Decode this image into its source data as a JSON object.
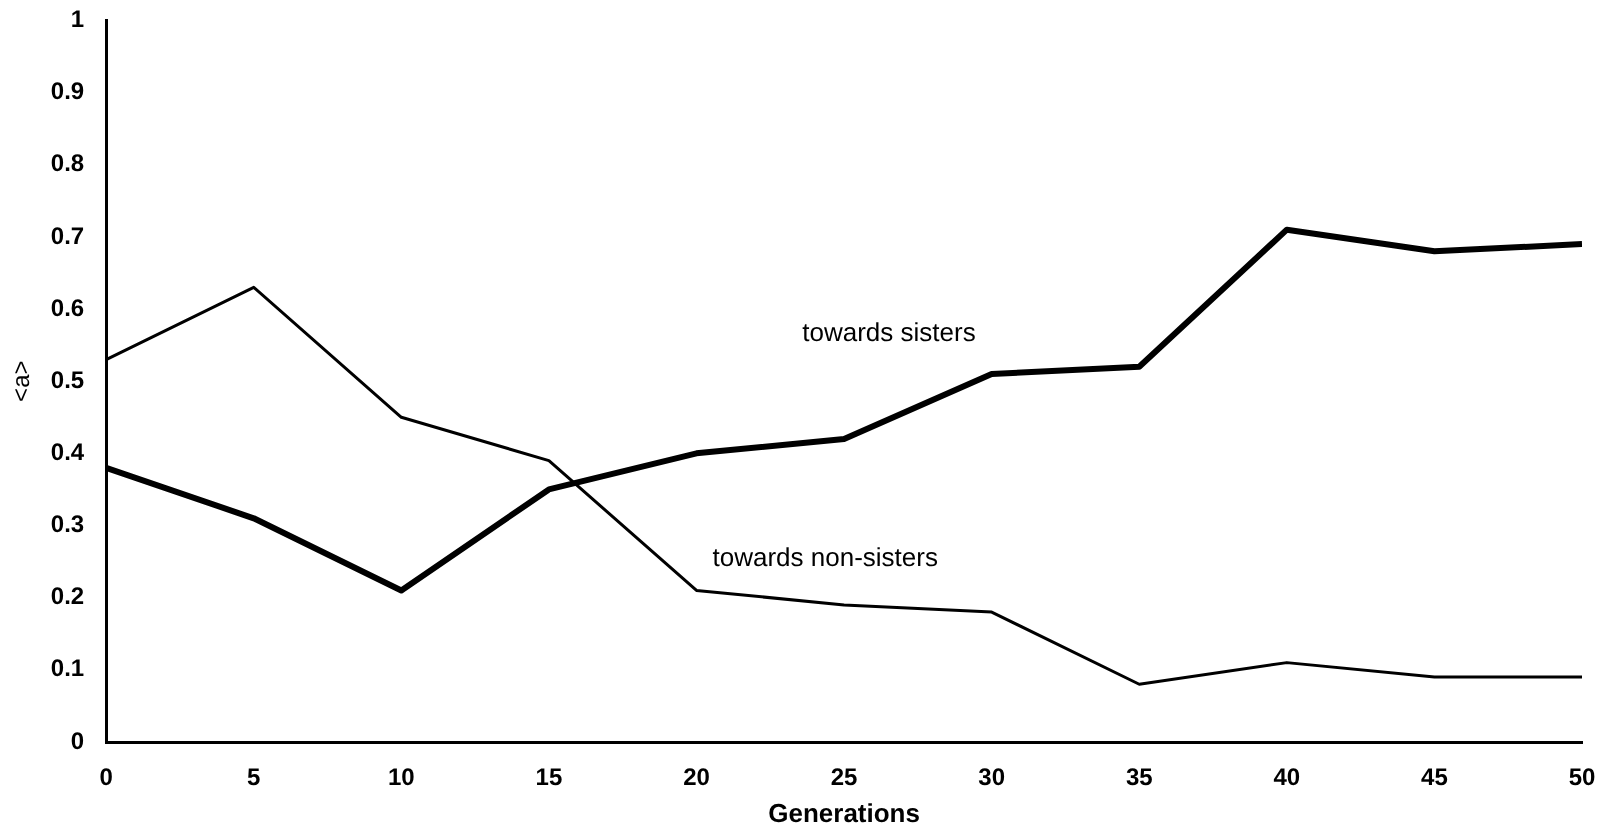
{
  "chart_data": {
    "type": "line",
    "xlabel": "Generations",
    "ylabel": "<a>",
    "x": [
      0,
      5,
      10,
      15,
      20,
      25,
      30,
      35,
      40,
      45,
      50
    ],
    "series": [
      {
        "name": "towards sisters",
        "color": "#000000",
        "values": [
          0.38,
          0.31,
          0.21,
          0.35,
          0.4,
          0.42,
          0.51,
          0.52,
          0.71,
          0.68,
          0.69
        ]
      },
      {
        "name": "towards non-sisters",
        "color": "#000000",
        "values": [
          0.53,
          0.63,
          0.45,
          0.39,
          0.21,
          0.19,
          0.18,
          0.08,
          0.11,
          0.09,
          0.09
        ]
      }
    ],
    "xlim": [
      0,
      50
    ],
    "xticks": [
      0,
      5,
      10,
      15,
      20,
      25,
      30,
      35,
      40,
      45,
      50
    ],
    "ylim": [
      0,
      1
    ],
    "yticks": [
      0,
      0.1,
      0.2,
      0.3,
      0.4,
      0.5,
      0.6,
      0.7,
      0.8,
      0.9,
      1
    ],
    "grid": false,
    "legend": false,
    "marker": "none",
    "line_style": "solid"
  }
}
